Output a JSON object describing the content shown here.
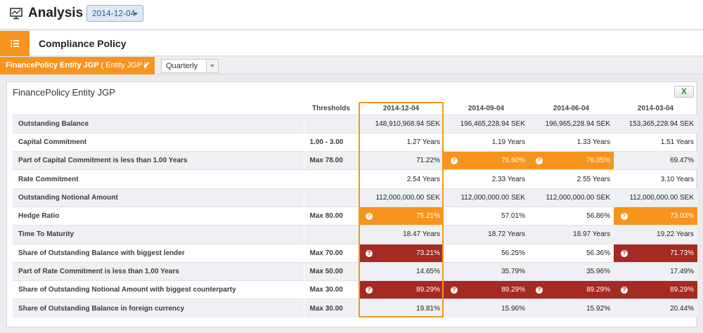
{
  "app": {
    "title": "Analysis",
    "date_selected": "2014-12-04"
  },
  "section": {
    "title": "Compliance Policy"
  },
  "filters": {
    "entity_label": "FinancePolicy Entity JGP",
    "entity_paren": "( Entity JGP )",
    "check_symbol": "✔",
    "period": "Quarterly"
  },
  "panel": {
    "title": "FinancePolicy Entity JGP",
    "export_label": "X"
  },
  "table": {
    "headers": {
      "thresholds": "Thresholds",
      "dates": [
        "2014-12-04",
        "2014-09-04",
        "2014-06-04",
        "2014-03-04"
      ]
    },
    "rows": [
      {
        "label": "Outstanding Balance",
        "threshold": "",
        "values": [
          "148,910,968.94 SEK",
          "196,465,228.94 SEK",
          "196,965,228.94 SEK",
          "153,365,228.94 SEK"
        ],
        "warn": [
          "",
          "",
          "",
          ""
        ]
      },
      {
        "label": "Capital Commitment",
        "threshold": "1.00 - 3.00",
        "values": [
          "1.27 Years",
          "1.19 Years",
          "1.33 Years",
          "1.51 Years"
        ],
        "warn": [
          "",
          "",
          "",
          ""
        ]
      },
      {
        "label": "Part of Capital Commitment is less than 1.00 Years",
        "threshold": "Max 78.00",
        "values": [
          "71.22%",
          "76.60%",
          "76.05%",
          "69.47%"
        ],
        "warn": [
          "",
          "orange",
          "orange",
          ""
        ]
      },
      {
        "label": "Rate Commitment",
        "threshold": "",
        "values": [
          "2.54 Years",
          "2.33 Years",
          "2.55 Years",
          "3.10 Years"
        ],
        "warn": [
          "",
          "",
          "",
          ""
        ]
      },
      {
        "label": "Outstanding Notional Amount",
        "threshold": "",
        "values": [
          "112,000,000.00 SEK",
          "112,000,000.00 SEK",
          "112,000,000.00 SEK",
          "112,000,000.00 SEK"
        ],
        "warn": [
          "",
          "",
          "",
          ""
        ]
      },
      {
        "label": "Hedge Ratio",
        "threshold": "Max 80.00",
        "values": [
          "75.21%",
          "57.01%",
          "56.86%",
          "73.03%"
        ],
        "warn": [
          "orange",
          "",
          "",
          "orange"
        ]
      },
      {
        "label": "Time To Maturity",
        "threshold": "",
        "values": [
          "18.47 Years",
          "18.72 Years",
          "18.97 Years",
          "19.22 Years"
        ],
        "warn": [
          "",
          "",
          "",
          ""
        ]
      },
      {
        "label": "Share of Outstanding Balance with biggest lender",
        "threshold": "Max 70.00",
        "values": [
          "73.21%",
          "56.25%",
          "56.36%",
          "71.73%"
        ],
        "warn": [
          "red",
          "",
          "",
          "red"
        ]
      },
      {
        "label": "Part of Rate Commitment is less than 1.00 Years",
        "threshold": "Max 50.00",
        "values": [
          "14.65%",
          "35.79%",
          "35.96%",
          "17.49%"
        ],
        "warn": [
          "",
          "",
          "",
          ""
        ]
      },
      {
        "label": "Share of Outstanding Notional Amount with biggest counterparty",
        "threshold": "Max 30.00",
        "values": [
          "89.29%",
          "89.29%",
          "89.29%",
          "89.29%"
        ],
        "warn": [
          "red",
          "red",
          "red",
          "red"
        ]
      },
      {
        "label": "Share of Outstanding Balance in foreign currency",
        "threshold": "Max 30.00",
        "values": [
          "19.81%",
          "15.96%",
          "15.92%",
          "20.44%"
        ],
        "warn": [
          "",
          "",
          "",
          ""
        ]
      }
    ]
  },
  "colors": {
    "accent": "#f7941d",
    "danger": "#a52a22",
    "row_shade": "#eef0f3"
  },
  "icons": {
    "app": "monitor-chart-icon",
    "section": "list-icon",
    "warning": "question-icon",
    "export": "excel-icon"
  }
}
